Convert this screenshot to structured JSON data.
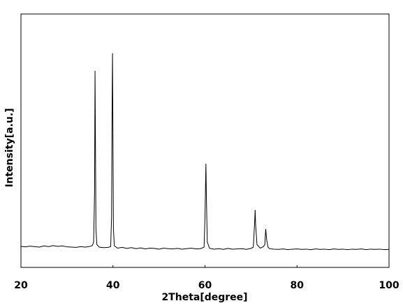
{
  "chart_data": {
    "type": "line",
    "x_label": "2Theta[degree]",
    "y_label": "Intensity[a.u.]",
    "xlim": [
      20,
      100
    ],
    "xticks": [
      20,
      40,
      60,
      80,
      100
    ],
    "ylim": [
      0,
      100
    ],
    "yticks": [],
    "color": "#000000",
    "x": [
      20,
      21,
      22,
      23,
      24,
      25,
      26,
      27,
      28,
      29,
      30,
      31,
      32,
      33,
      34,
      35,
      35.5,
      35.8,
      36.0,
      36.1,
      36.2,
      36.3,
      36.5,
      37,
      38,
      39,
      39.5,
      39.7,
      39.8,
      39.9,
      40.0,
      40.1,
      40.3,
      41,
      42,
      43,
      44,
      45,
      46,
      47,
      48,
      49,
      50,
      51,
      52,
      53,
      54,
      55,
      56,
      57,
      58,
      59,
      59.8,
      60.0,
      60.2,
      60.3,
      60.5,
      61,
      62,
      63,
      64,
      65,
      66,
      67,
      68,
      69,
      70,
      70.5,
      70.8,
      70.9,
      71.0,
      71.3,
      72,
      72.7,
      73.0,
      73.2,
      73.4,
      73.7,
      74,
      75,
      76,
      77,
      78,
      79,
      80,
      81,
      82,
      83,
      84,
      85,
      86,
      87,
      88,
      89,
      90,
      91,
      92,
      93,
      94,
      95,
      96,
      97,
      98,
      99,
      100
    ],
    "values": [
      8.3,
      8.1,
      8.4,
      8.2,
      8.0,
      8.5,
      8.2,
      8.6,
      8.3,
      8.5,
      8.1,
      8.0,
      7.9,
      8.2,
      8.0,
      8.3,
      8.6,
      10,
      30,
      77.6,
      47,
      15,
      9,
      8.0,
      7.8,
      7.9,
      8.2,
      20,
      60,
      84.5,
      50,
      15,
      8.5,
      7.6,
      7.9,
      7.5,
      7.8,
      7.4,
      7.7,
      7.3,
      7.6,
      7.5,
      7.2,
      7.6,
      7.4,
      7.3,
      7.5,
      7.2,
      7.4,
      7.6,
      7.3,
      7.4,
      8,
      20,
      40.9,
      28,
      10,
      7.5,
      7.2,
      7.4,
      7.1,
      7.5,
      7.2,
      7.3,
      7.4,
      7.1,
      7.5,
      8,
      18,
      22.7,
      17,
      9,
      7.6,
      8.2,
      9,
      15.2,
      11,
      8,
      7.4,
      7.2,
      7.1,
      7.3,
      7.0,
      7.2,
      7.3,
      7.1,
      7.2,
      7.0,
      7.3,
      7.1,
      7.2,
      7.0,
      7.3,
      7.1,
      7.2,
      7.0,
      7.2,
      7.1,
      7.3,
      7.0,
      7.2,
      7.1,
      7.2,
      7.0,
      7.1
    ]
  }
}
